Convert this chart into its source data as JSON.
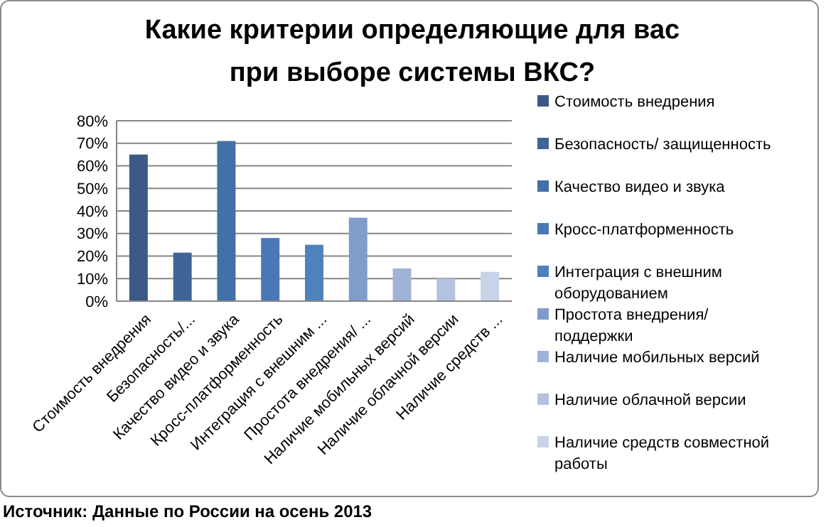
{
  "chart_data": {
    "type": "bar",
    "title": "Какие критерии определяющие для вас при выборе системы ВКС?",
    "categories": [
      "Стоимость внедрения",
      "Безопасность/...",
      "Качество видео и звука",
      "Кросс-платформенность",
      "Интеграция с внешним ...",
      "Простота внедрения/ ...",
      "Наличие мобильных версий",
      "Наличие облачной версии",
      "Наличие средств ..."
    ],
    "series": [
      {
        "name": "Стоимость внедрения",
        "color": "#3b5a85",
        "values": [
          65,
          null,
          null,
          null,
          null,
          null,
          null,
          null,
          null
        ]
      },
      {
        "name": "Безопасность/ защищенность",
        "color": "#3f6496",
        "values": [
          null,
          21.5,
          null,
          null,
          null,
          null,
          null,
          null,
          null
        ]
      },
      {
        "name": "Качество видео и звука",
        "color": "#4470a8",
        "values": [
          null,
          null,
          71,
          null,
          null,
          null,
          null,
          null,
          null
        ]
      },
      {
        "name": "Кросс-платформенность",
        "color": "#4a78b5",
        "values": [
          null,
          null,
          null,
          28,
          null,
          null,
          null,
          null,
          null
        ]
      },
      {
        "name": "Интеграция с внешним оборудованием",
        "color": "#4f81bd",
        "values": [
          null,
          null,
          null,
          null,
          25,
          null,
          null,
          null,
          null
        ]
      },
      {
        "name": "Простота внедрения/ поддержки",
        "color": "#7f9ccb",
        "values": [
          null,
          null,
          null,
          null,
          null,
          37,
          null,
          null,
          null
        ]
      },
      {
        "name": "Наличие мобильных версий",
        "color": "#9fb3d6",
        "values": [
          null,
          null,
          null,
          null,
          null,
          null,
          14.5,
          null,
          null
        ]
      },
      {
        "name": "Наличие облачной версии",
        "color": "#b3c3df",
        "values": [
          null,
          null,
          null,
          null,
          null,
          null,
          null,
          10,
          null
        ]
      },
      {
        "name": "Наличие средств совместной работы",
        "color": "#c8d3e8",
        "values": [
          null,
          null,
          null,
          null,
          null,
          null,
          null,
          null,
          13
        ]
      }
    ],
    "ylim": [
      0,
      80
    ],
    "yticks": [
      {
        "value": 0,
        "label": "0%"
      },
      {
        "value": 10,
        "label": "10%"
      },
      {
        "value": 20,
        "label": "20%"
      },
      {
        "value": 30,
        "label": "30%"
      },
      {
        "value": 40,
        "label": "40%"
      },
      {
        "value": 50,
        "label": "50%"
      },
      {
        "value": 60,
        "label": "60%"
      },
      {
        "value": 70,
        "label": "70%"
      },
      {
        "value": 80,
        "label": "80%"
      }
    ],
    "grid": "y",
    "legend": "right",
    "annotations": [
      "Источник: Данные по России на осень 2013"
    ]
  }
}
